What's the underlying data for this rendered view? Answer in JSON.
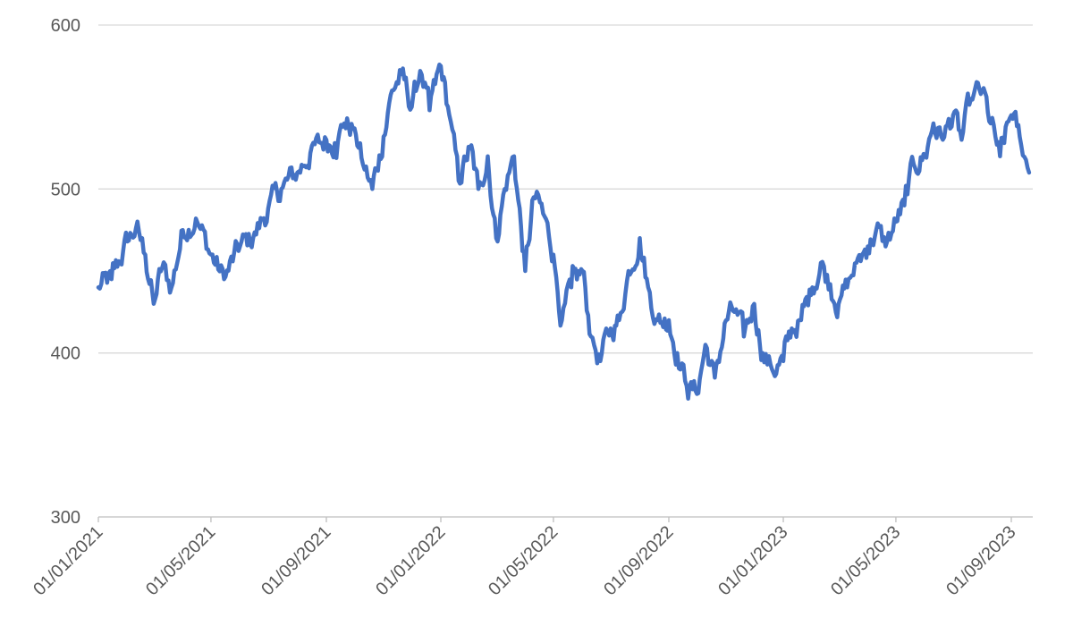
{
  "chart_data": {
    "type": "line",
    "title": "",
    "xlabel": "",
    "ylabel": "",
    "ylim": [
      300,
      600
    ],
    "y_ticks": [
      "300",
      "400",
      "500",
      "600"
    ],
    "x_ticks": [
      "01/01/2021",
      "01/05/2021",
      "01/09/2021",
      "01/01/2022",
      "01/05/2022",
      "01/09/2022",
      "01/01/2023",
      "01/05/2023",
      "01/09/2023"
    ],
    "grid": "horizontal",
    "legend": "none",
    "colors": {
      "line": "#4472c4",
      "grid": "#d9d9d9",
      "axis": "#bfbfbf",
      "text": "#595959"
    },
    "series": [
      {
        "x": [
          "2021-01-01",
          "2021-01-15",
          "2021-02-01",
          "2021-02-10",
          "2021-02-20",
          "2021-03-01",
          "2021-03-10",
          "2021-03-20",
          "2021-04-01",
          "2021-04-15",
          "2021-05-01",
          "2021-05-15",
          "2021-06-01",
          "2021-06-15",
          "2021-07-01",
          "2021-07-15",
          "2021-08-01",
          "2021-08-15",
          "2021-09-01",
          "2021-09-10",
          "2021-09-20",
          "2021-10-01",
          "2021-10-10",
          "2021-10-20",
          "2021-11-01",
          "2021-11-10",
          "2021-11-20",
          "2021-12-01",
          "2021-12-10",
          "2021-12-20",
          "2022-01-01",
          "2022-01-10",
          "2022-01-20",
          "2022-02-01",
          "2022-02-10",
          "2022-02-20",
          "2022-03-01",
          "2022-03-10",
          "2022-03-20",
          "2022-04-01",
          "2022-04-10",
          "2022-04-20",
          "2022-05-01",
          "2022-05-10",
          "2022-05-20",
          "2022-06-01",
          "2022-06-10",
          "2022-06-20",
          "2022-07-01",
          "2022-07-10",
          "2022-07-20",
          "2022-08-01",
          "2022-08-10",
          "2022-08-20",
          "2022-09-01",
          "2022-09-10",
          "2022-09-20",
          "2022-10-01",
          "2022-10-10",
          "2022-10-20",
          "2022-11-01",
          "2022-11-10",
          "2022-11-20",
          "2022-12-01",
          "2022-12-10",
          "2022-12-20",
          "2023-01-01",
          "2023-01-10",
          "2023-01-20",
          "2023-02-01",
          "2023-02-10",
          "2023-02-20",
          "2023-03-01",
          "2023-03-10",
          "2023-03-20",
          "2023-04-01",
          "2023-04-10",
          "2023-04-20",
          "2023-05-01",
          "2023-05-10",
          "2023-05-20",
          "2023-06-01",
          "2023-06-10",
          "2023-06-20",
          "2023-07-01",
          "2023-07-10",
          "2023-07-20",
          "2023-08-01",
          "2023-08-10",
          "2023-08-20",
          "2023-09-01",
          "2023-09-10",
          "2023-09-20"
        ],
        "values": [
          440,
          445,
          468,
          476,
          460,
          430,
          452,
          440,
          475,
          482,
          460,
          445,
          465,
          470,
          488,
          500,
          510,
          522,
          530,
          528,
          540,
          537,
          515,
          500,
          532,
          560,
          570,
          550,
          572,
          548,
          575,
          545,
          505,
          525,
          500,
          520,
          470,
          500,
          520,
          450,
          495,
          485,
          460,
          420,
          440,
          450,
          410,
          395,
          415,
          420,
          450,
          470,
          440,
          420,
          420,
          400,
          380,
          375,
          405,
          385,
          420,
          425,
          410,
          430,
          400,
          390,
          395,
          415,
          420,
          440,
          455,
          442,
          430,
          440,
          455,
          465,
          475,
          465,
          480,
          490,
          515,
          520,
          540,
          530,
          545,
          530,
          555,
          560,
          540,
          520,
          545,
          532,
          510
        ]
      }
    ]
  }
}
